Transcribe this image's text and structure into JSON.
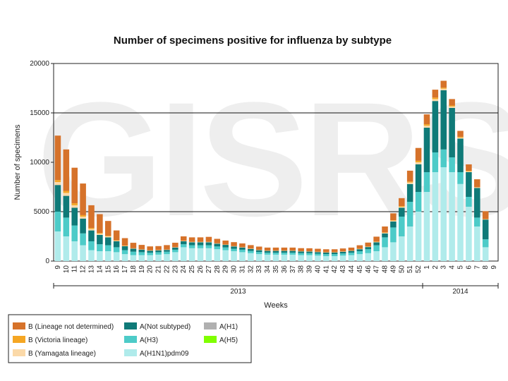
{
  "chart_data": {
    "type": "bar",
    "stacked": true,
    "title": "Number of specimens positive for influenza by subtype",
    "xlabel": "Weeks",
    "ylabel": "Number of specimens",
    "ylim": [
      0,
      20000
    ],
    "yticks": [
      "0",
      "5000",
      "10000",
      "15000",
      "20000"
    ],
    "gridlines": [
      5000,
      15000
    ],
    "watermark": "GISRS",
    "year_groups": [
      {
        "label": "2013",
        "from": 0,
        "to": 43
      },
      {
        "label": "2014",
        "from": 44,
        "to": 52
      }
    ],
    "categories": [
      "9",
      "10",
      "11",
      "12",
      "13",
      "14",
      "15",
      "16",
      "17",
      "18",
      "19",
      "20",
      "21",
      "22",
      "23",
      "24",
      "25",
      "26",
      "27",
      "28",
      "29",
      "30",
      "31",
      "32",
      "33",
      "34",
      "35",
      "36",
      "37",
      "38",
      "39",
      "40",
      "41",
      "42",
      "43",
      "44",
      "45",
      "46",
      "47",
      "48",
      "49",
      "50",
      "51",
      "52",
      "1",
      "2",
      "3",
      "4",
      "5",
      "6",
      "7",
      "8",
      "9"
    ],
    "legend_position": "bottom-left",
    "series": [
      {
        "name": "A(H1N1)pdm09",
        "color": "#b0ebeb",
        "values": [
          3000,
          2500,
          2000,
          1600,
          1100,
          1000,
          1000,
          900,
          700,
          600,
          600,
          600,
          650,
          700,
          900,
          1400,
          1300,
          1300,
          1300,
          1200,
          1100,
          1000,
          900,
          800,
          700,
          650,
          650,
          650,
          650,
          600,
          600,
          550,
          500,
          500,
          550,
          600,
          700,
          800,
          1000,
          1400,
          1900,
          2500,
          3500,
          5000,
          7000,
          9000,
          9500,
          9000,
          7800,
          5500,
          3500,
          1400,
          0
        ]
      },
      {
        "name": "A(H3)",
        "color": "#4dcbc8",
        "values": [
          2000,
          1900,
          1600,
          1200,
          900,
          700,
          600,
          500,
          400,
          350,
          300,
          250,
          250,
          250,
          250,
          300,
          300,
          300,
          300,
          280,
          280,
          250,
          250,
          230,
          220,
          200,
          200,
          200,
          200,
          200,
          200,
          200,
          200,
          200,
          220,
          250,
          300,
          400,
          600,
          1000,
          1500,
          2000,
          2500,
          2000,
          2000,
          2000,
          1800,
          1500,
          1200,
          1000,
          900,
          800,
          0
        ]
      },
      {
        "name": "A(Not subtyped)",
        "color": "#0f7a78",
        "values": [
          2700,
          2200,
          1800,
          1500,
          1100,
          950,
          800,
          600,
          400,
          300,
          250,
          200,
          180,
          180,
          220,
          300,
          300,
          300,
          300,
          280,
          260,
          230,
          220,
          200,
          180,
          180,
          180,
          180,
          180,
          170,
          160,
          160,
          160,
          160,
          170,
          180,
          200,
          220,
          300,
          400,
          600,
          900,
          1800,
          2800,
          4500,
          5200,
          6000,
          5000,
          3400,
          2500,
          3000,
          2000,
          0
        ]
      },
      {
        "name": "A(H1)",
        "color": "#b0b0b0",
        "values": [
          0,
          0,
          0,
          0,
          0,
          0,
          0,
          0,
          0,
          0,
          0,
          0,
          0,
          0,
          0,
          0,
          0,
          0,
          0,
          0,
          0,
          0,
          0,
          0,
          0,
          0,
          0,
          0,
          0,
          0,
          0,
          0,
          0,
          0,
          0,
          0,
          0,
          0,
          0,
          0,
          0,
          0,
          0,
          0,
          0,
          0,
          0,
          0,
          0,
          0,
          0,
          0,
          0
        ]
      },
      {
        "name": "A(H5)",
        "color": "#80ff00",
        "values": [
          0,
          0,
          0,
          0,
          0,
          0,
          0,
          0,
          0,
          0,
          0,
          0,
          0,
          0,
          0,
          0,
          0,
          0,
          0,
          0,
          0,
          0,
          0,
          0,
          0,
          0,
          0,
          0,
          0,
          0,
          0,
          0,
          0,
          0,
          0,
          0,
          0,
          0,
          0,
          0,
          0,
          0,
          0,
          0,
          0,
          0,
          0,
          0,
          0,
          0,
          0,
          0,
          0
        ]
      },
      {
        "name": "B (Yamagata lineage)",
        "color": "#fbd9a8",
        "values": [
          300,
          300,
          250,
          200,
          150,
          120,
          100,
          60,
          40,
          30,
          20,
          20,
          20,
          20,
          20,
          30,
          30,
          30,
          30,
          25,
          20,
          20,
          20,
          20,
          20,
          20,
          20,
          20,
          20,
          20,
          20,
          20,
          20,
          20,
          20,
          20,
          30,
          30,
          40,
          60,
          80,
          100,
          150,
          200,
          200,
          200,
          150,
          150,
          100,
          80,
          50,
          30,
          0
        ]
      },
      {
        "name": "B (Victoria lineage)",
        "color": "#f5a623",
        "values": [
          200,
          200,
          200,
          150,
          100,
          80,
          60,
          40,
          30,
          20,
          15,
          15,
          15,
          15,
          15,
          20,
          20,
          20,
          20,
          15,
          15,
          15,
          15,
          15,
          15,
          15,
          15,
          15,
          15,
          15,
          15,
          15,
          15,
          15,
          15,
          15,
          20,
          20,
          30,
          40,
          50,
          70,
          100,
          150,
          150,
          150,
          100,
          100,
          80,
          60,
          30,
          20,
          0
        ]
      },
      {
        "name": "B (Lineage not determined)",
        "color": "#d6722a",
        "values": [
          4500,
          4200,
          3600,
          3200,
          2300,
          1900,
          1500,
          1000,
          750,
          550,
          450,
          400,
          400,
          450,
          450,
          450,
          450,
          450,
          500,
          450,
          400,
          400,
          380,
          350,
          330,
          300,
          300,
          300,
          300,
          300,
          300,
          300,
          300,
          300,
          300,
          300,
          350,
          400,
          500,
          600,
          700,
          800,
          1100,
          1300,
          1000,
          800,
          700,
          650,
          600,
          650,
          800,
          800,
          0
        ]
      }
    ]
  }
}
